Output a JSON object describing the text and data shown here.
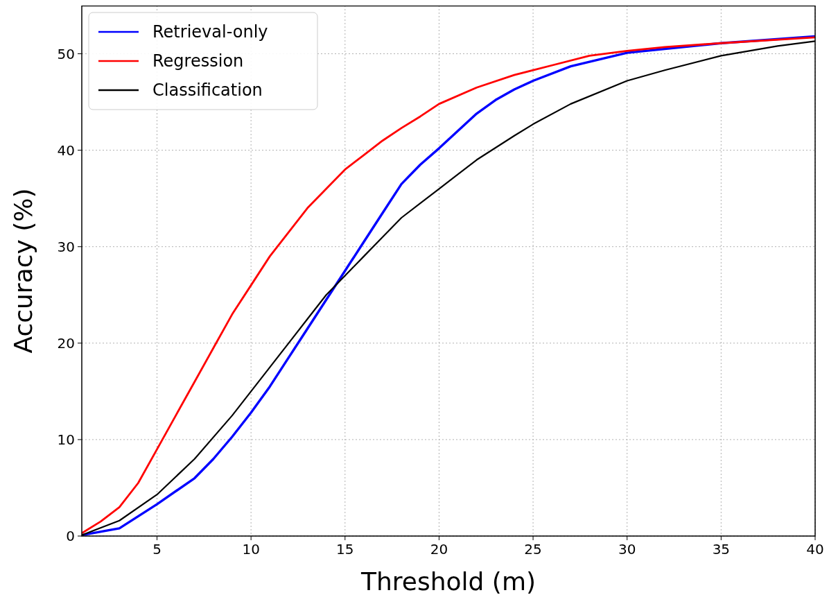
{
  "chart_data": {
    "type": "line",
    "xlabel": "Threshold (m)",
    "ylabel": "Accuracy (%)",
    "xlim": [
      1,
      40
    ],
    "ylim": [
      0,
      55
    ],
    "xticks": [
      5,
      10,
      15,
      20,
      25,
      30,
      35,
      40
    ],
    "yticks": [
      0,
      10,
      20,
      30,
      40,
      50
    ],
    "grid": true,
    "legend": "top left",
    "line_style": "solid",
    "marker": "none",
    "series": [
      {
        "name": "Retrieval-only",
        "color": "#0000ff",
        "x": [
          1,
          3,
          5,
          7,
          8,
          9,
          10,
          11,
          12,
          13,
          14,
          15,
          16,
          17,
          18,
          19,
          20,
          21,
          22,
          23,
          24,
          25,
          27,
          30,
          35,
          40
        ],
        "values": [
          0.1,
          0.8,
          3.3,
          6,
          8,
          10.3,
          12.8,
          15.5,
          18.5,
          21.5,
          24.5,
          27.5,
          30.5,
          33.5,
          36.5,
          38.5,
          40.2,
          42,
          43.8,
          45.2,
          46.3,
          47.2,
          48.7,
          50.1,
          51.1,
          51.8
        ]
      },
      {
        "name": "Regression",
        "color": "#ff0000",
        "x": [
          1,
          2,
          3,
          4,
          5,
          6,
          7,
          8,
          9,
          10,
          11,
          12,
          13,
          14,
          15,
          16,
          17,
          18,
          19,
          20,
          22,
          24,
          26,
          28,
          30,
          32,
          35,
          40
        ],
        "values": [
          0.3,
          1.5,
          3,
          5.5,
          9,
          12.5,
          16,
          19.5,
          23,
          26,
          29,
          31.5,
          34,
          36,
          38,
          39.5,
          41,
          42.3,
          43.5,
          44.8,
          46.5,
          47.8,
          48.8,
          49.8,
          50.3,
          50.7,
          51.1,
          51.7
        ]
      },
      {
        "name": "Classification",
        "color": "#000000",
        "x": [
          1,
          3,
          5,
          7,
          9,
          10,
          11,
          12,
          13,
          14,
          15,
          16,
          17,
          18,
          19,
          20,
          22,
          24,
          25,
          27,
          30,
          32,
          35,
          38,
          40
        ],
        "values": [
          0.1,
          1.6,
          4.3,
          8,
          12.5,
          15,
          17.5,
          20,
          22.5,
          25,
          27,
          29,
          31,
          33,
          34.5,
          36,
          39,
          41.5,
          42.7,
          44.8,
          47.2,
          48.3,
          49.8,
          50.8,
          51.3
        ]
      }
    ]
  }
}
